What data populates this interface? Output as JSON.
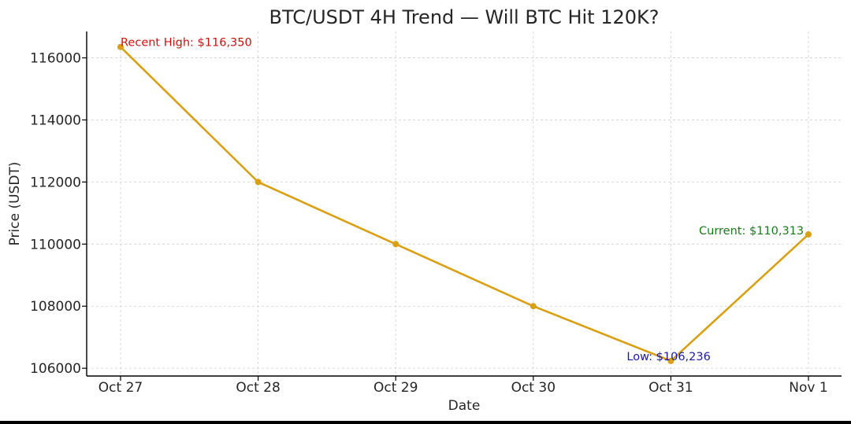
{
  "chart_data": {
    "type": "line",
    "title": "BTC/USDT 4H Trend — Will BTC Hit 120K?",
    "xlabel": "Date",
    "ylabel": "Price (USDT)",
    "categories": [
      "Oct 27",
      "Oct 28",
      "Oct 29",
      "Oct 30",
      "Oct 31",
      "Nov 1"
    ],
    "series": [
      {
        "values": [
          116350,
          112000,
          110000,
          108000,
          106236,
          110313
        ]
      }
    ],
    "ylim": [
      105750,
      116850
    ],
    "yticks": [
      106000,
      108000,
      110000,
      112000,
      114000,
      116000
    ],
    "ytick_labels": [
      "106000",
      "108000",
      "110000",
      "112000",
      "114000",
      "116000"
    ],
    "grid": true,
    "line_color": "#DAA014",
    "annotations": [
      {
        "text": "Recent High: $116,350",
        "point_index": 0,
        "color": "#CC1111"
      },
      {
        "text": "Low: $106,236",
        "point_index": 4,
        "color": "#1A1AA6"
      },
      {
        "text": "Current: $110,313",
        "point_index": 5,
        "color": "#1A7A1A"
      }
    ]
  }
}
